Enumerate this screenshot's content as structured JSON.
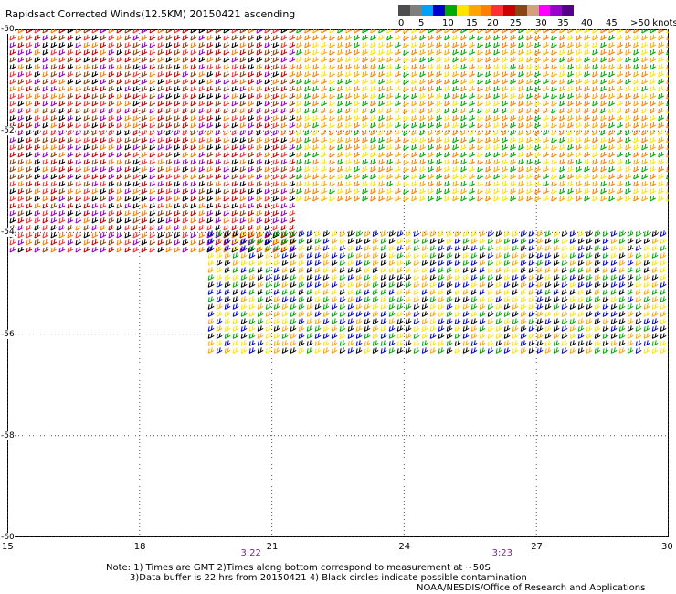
{
  "title": "Rapidsact Corrected Winds(12.5KM) 20150421 ascending",
  "legend": {
    "colors": [
      "#4d4d4d",
      "#7f7f7f",
      "#00a0ff",
      "#0000cc",
      "#00aa00",
      "#ffe400",
      "#ffa500",
      "#ff7f00",
      "#ff3030",
      "#cc0000",
      "#8b4513",
      "#d2a07a",
      "#ff00ff",
      "#9900cc",
      "#550088"
    ],
    "labels": [
      "0",
      "5",
      "10",
      "15",
      "20",
      "25",
      "30",
      "35",
      "40",
      "45",
      ">50 knots"
    ]
  },
  "axes": {
    "x_ticks": [
      "15",
      "18",
      "21",
      "24",
      "27",
      "30"
    ],
    "y_ticks": [
      "-50",
      "-52",
      "-54",
      "-56",
      "-58",
      "-60"
    ],
    "xlim": [
      15,
      30
    ],
    "ylim": [
      -60,
      -50
    ]
  },
  "times": [
    {
      "label": "3:22",
      "lon": 20.5
    },
    {
      "label": "3:23",
      "lon": 26.2
    }
  ],
  "notes": [
    "Note: 1) Times are GMT 2)Times along bottom correspond to measurement at ~50S",
    "3)Data buffer is 22 hrs from 20150421 4) Black circles indicate possible contamination",
    "NOAA/NESDIS/Office of Research and Applications"
  ],
  "wind_regions": {
    "swath_northwest": {
      "lon": [
        15,
        21.5
      ],
      "lat": [
        -54.5,
        -50
      ],
      "colors": [
        "#cc0000",
        "#ff3030",
        "#8b4513",
        "#ff7f00",
        "#9900cc",
        "#000000"
      ]
    },
    "swath_northeast": {
      "lon": [
        21.5,
        30
      ],
      "lat": [
        -53.5,
        -50
      ],
      "colors": [
        "#ff7f00",
        "#ffa500",
        "#ffe400",
        "#00aa00"
      ]
    },
    "swath_south": {
      "lon": [
        19.5,
        30
      ],
      "lat": [
        -56.5,
        -54
      ],
      "colors": [
        "#ffe400",
        "#ffa500",
        "#00aa00",
        "#000000",
        "#0000cc"
      ]
    }
  }
}
